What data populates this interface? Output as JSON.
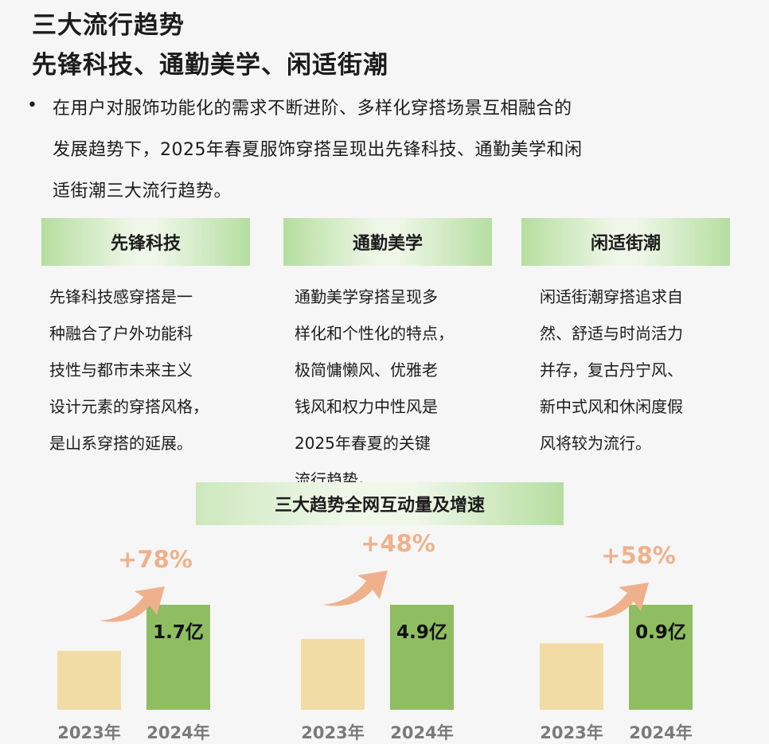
{
  "heading": {
    "line1": "三大流行趋势",
    "line2": "先锋科技、通勤美学、闲适街潮"
  },
  "intro": {
    "bullet": "•",
    "lines": [
      "在用户对服饰功能化的需求不断进阶、多样化穿搭场景互相融合的",
      "发展趋势下，2025年春夏服饰穿搭呈现出先锋科技、通勤美学和闲",
      "适街潮三大流行趋势。"
    ]
  },
  "trends": [
    {
      "name": "先锋科技",
      "desc": [
        "先锋科技感穿搭是一",
        "种融合了户外功能科",
        "技性与都市未来主义",
        "设计元素的穿搭风格，",
        "是山系穿搭的延展。"
      ]
    },
    {
      "name": "通勤美学",
      "desc": [
        "通勤美学穿搭呈现多",
        "样化和个性化的特点，",
        "极简慵懒风、优雅老",
        "钱风和权力中性风是",
        "2025年春夏的关键",
        "流行趋势。"
      ]
    },
    {
      "name": "闲适街潮",
      "desc": [
        "闲适街潮穿搭追求自",
        "然、舒适与时尚活力",
        "并存，复古丹宁风、",
        "新中式风和休闲度假",
        "风将较为流行。"
      ]
    }
  ],
  "chart_title": "三大趋势全网互动量及增速",
  "colors": {
    "bar_2023": "#f2dca6",
    "bar_2024": "#8fbd61",
    "arrow": "#efb18c",
    "growth_text": "#efb18c",
    "year_text": "#7a7a7a",
    "header_green": "#b6dea0"
  },
  "chart_data": [
    {
      "type": "bar",
      "title": "先锋科技",
      "categories": [
        "2023年",
        "2024年"
      ],
      "values": [
        0.955,
        1.7
      ],
      "value_labels": [
        "",
        "1.7亿"
      ],
      "growth_label": "+78%"
    },
    {
      "type": "bar",
      "title": "通勤美学",
      "categories": [
        "2023年",
        "2024年"
      ],
      "values": [
        3.31,
        4.9
      ],
      "value_labels": [
        "",
        "4.9亿"
      ],
      "growth_label": "+48%"
    },
    {
      "type": "bar",
      "title": "闲适街潮",
      "categories": [
        "2023年",
        "2024年"
      ],
      "values": [
        0.57,
        0.9
      ],
      "value_labels": [
        "",
        "0.9亿"
      ],
      "growth_label": "+58%"
    }
  ]
}
